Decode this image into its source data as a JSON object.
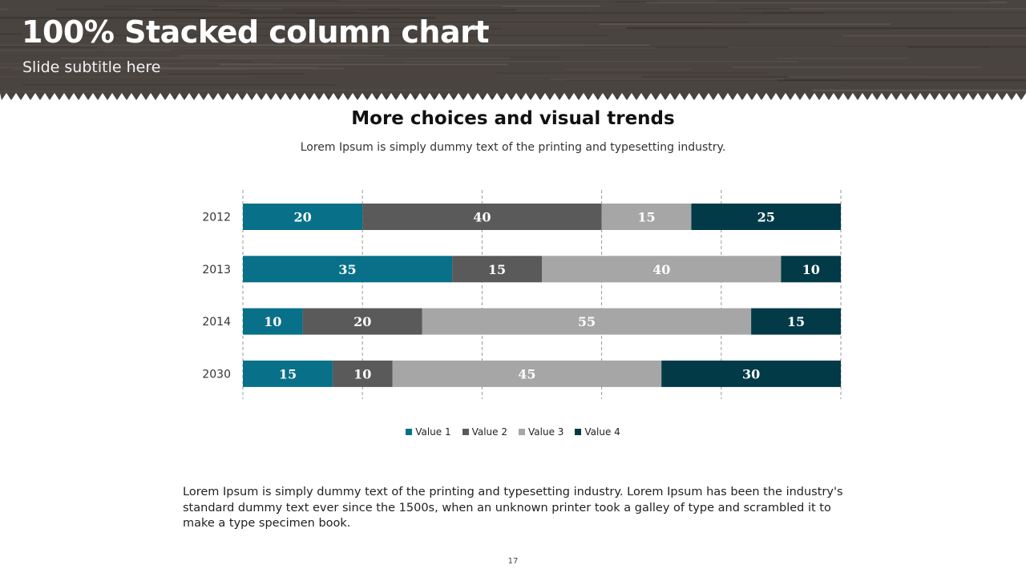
{
  "slide": {
    "title": "100% Stacked column chart",
    "subtitle": "Slide subtitle here",
    "page_number": "17",
    "body_text": "Lorem Ipsum is simply dummy text of the printing and typesetting industry. Lorem Ipsum has been the industry's standard dummy text ever since the 1500s, when an unknown printer took a galley of type and scrambled it to make a type specimen book."
  },
  "colors": {
    "header_bg": "#4a4441",
    "header_grain": "#2f2b29",
    "value1": "#087089",
    "value2": "#5a5a5a",
    "value3": "#a6a6a6",
    "value4": "#033a48",
    "gridline": "#9a9a9a"
  },
  "chart_data": {
    "type": "bar",
    "orientation": "horizontal",
    "stacking": "percent",
    "title": "More choices and visual trends",
    "subtitle": "Lorem Ipsum is simply dummy text of the printing and typesetting industry.",
    "categories": [
      "2012",
      "2013",
      "2014",
      "2030"
    ],
    "series": [
      {
        "name": "Value 1",
        "values": [
          20,
          35,
          10,
          15
        ]
      },
      {
        "name": "Value 2",
        "values": [
          40,
          15,
          20,
          10
        ]
      },
      {
        "name": "Value 3",
        "values": [
          15,
          40,
          55,
          45
        ]
      },
      {
        "name": "Value 4",
        "values": [
          25,
          10,
          15,
          30
        ]
      }
    ],
    "xlim": [
      0,
      100
    ],
    "grid": true,
    "legend_position": "bottom"
  }
}
